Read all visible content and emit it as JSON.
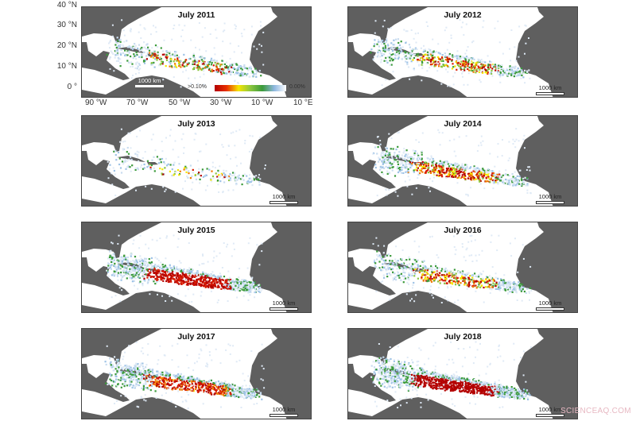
{
  "panels": [
    {
      "title": "July 2011"
    },
    {
      "title": "July 2012"
    },
    {
      "title": "July 2013"
    },
    {
      "title": "July 2014"
    },
    {
      "title": "July 2015"
    },
    {
      "title": "July 2016"
    },
    {
      "title": "July 2017"
    },
    {
      "title": "July 2018"
    }
  ],
  "axes": {
    "lat_ticks": [
      "40 °N",
      "30 °N",
      "20 °N",
      "10 °N",
      "0 °"
    ],
    "lon_ticks": [
      "90 °W",
      "70 °W",
      "50 °W",
      "30 °W",
      "10 °W",
      "10 °E"
    ]
  },
  "legend": {
    "max_label": ">0.10%",
    "min_label": "0.00%",
    "colors": [
      "#b30000",
      "#f5e600",
      "#3a9a3a",
      "#8fb7e0",
      "#ffffff"
    ]
  },
  "scale_label": "1000 km",
  "colors": {
    "land": "#5f5f5f",
    "ocean": "#ffffff"
  },
  "watermark": "SCIENCEAQ.COM"
}
